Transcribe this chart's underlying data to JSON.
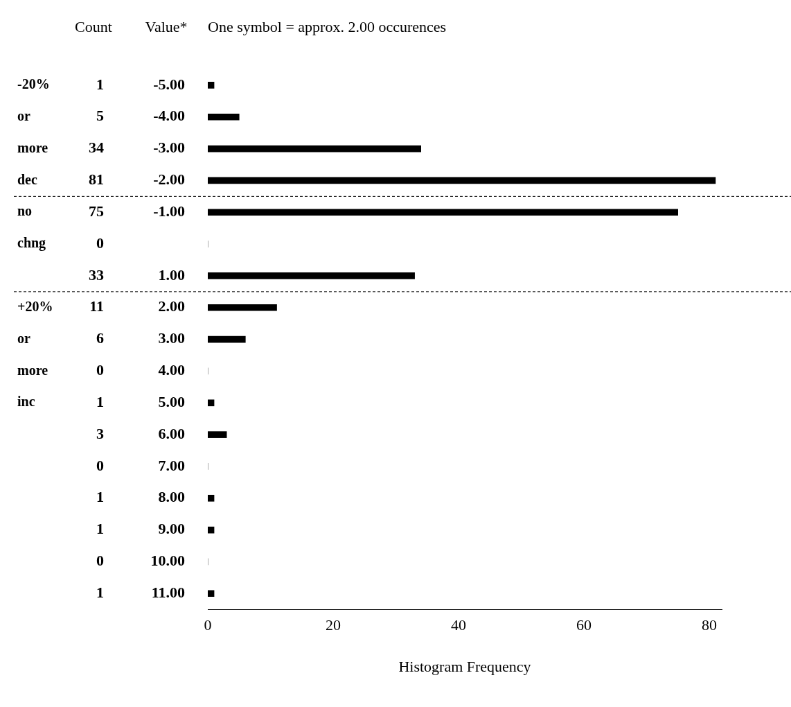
{
  "chart_data": {
    "type": "bar",
    "orientation": "horizontal",
    "title": "One symbol = approx. 2.00 occurences",
    "xlabel": "Histogram Frequency",
    "categories": [
      "-5.00",
      "-4.00",
      "-3.00",
      "-2.00",
      "-1.00",
      null,
      "1.00",
      "2.00",
      "3.00",
      "4.00",
      "5.00",
      "6.00",
      "7.00",
      "8.00",
      "9.00",
      "10.00",
      "11.00"
    ],
    "values": [
      1,
      5,
      34,
      81,
      75,
      0,
      33,
      11,
      6,
      0,
      1,
      3,
      0,
      1,
      1,
      0,
      1
    ],
    "color": "#000000",
    "data_labels": true,
    "xlim": [
      0,
      82
    ],
    "xticks": [
      0,
      20,
      40,
      60,
      80
    ],
    "grid": false,
    "annotations": [
      "Count",
      "Value*",
      "-20% or more dec",
      "no chng",
      "+20% or more inc"
    ]
  }
}
